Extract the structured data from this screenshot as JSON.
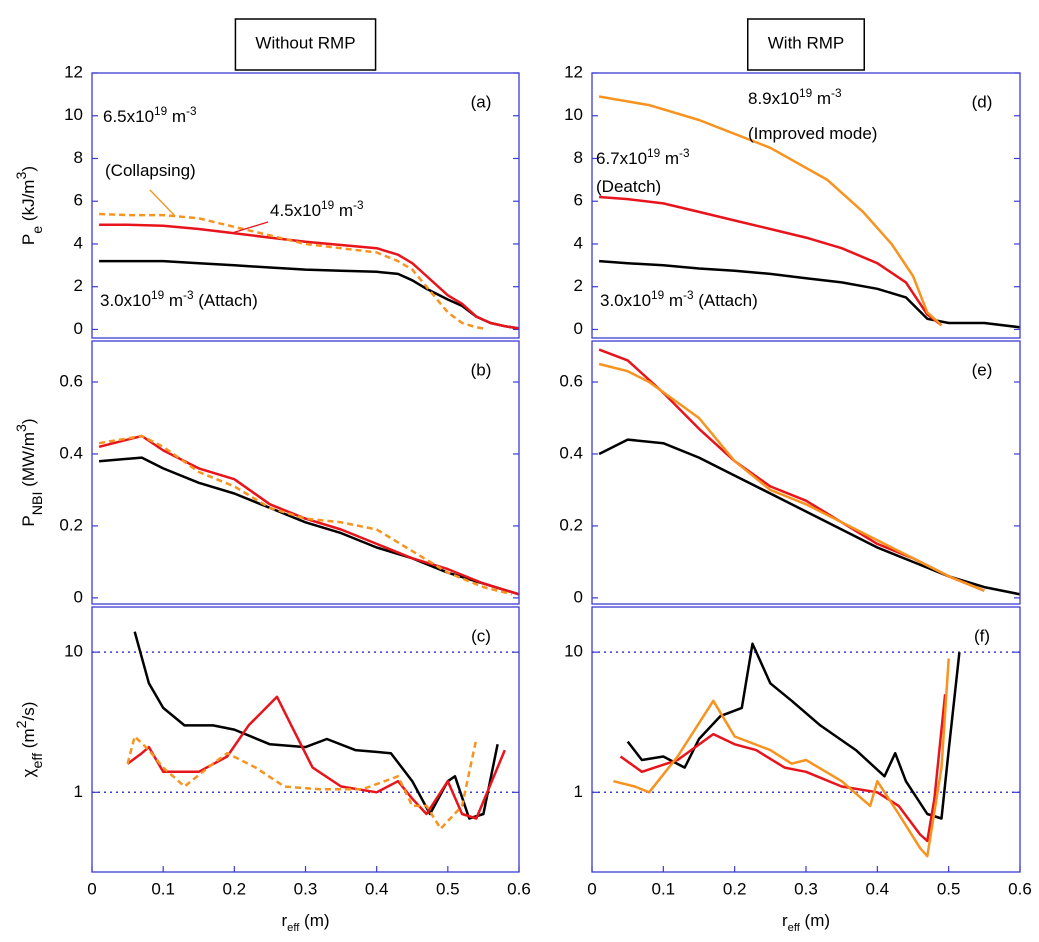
{
  "chart_data": [
    {
      "type": "line",
      "title": "Without RMP",
      "label": "(a)",
      "ylabel": [
        {
          "text": "P"
        },
        {
          "text": "e",
          "sub": true
        },
        {
          "text": " (kJ/m"
        },
        {
          "text": "3",
          "sup": true
        },
        {
          "text": ")"
        }
      ],
      "xlim": [
        0,
        0.6
      ],
      "ylim": [
        -0.4,
        12
      ],
      "yticks": [
        0,
        2,
        4,
        6,
        8,
        10,
        12
      ],
      "series": [
        {
          "color": "#000000",
          "x": [
            0.01,
            0.05,
            0.1,
            0.15,
            0.2,
            0.25,
            0.3,
            0.35,
            0.4,
            0.43,
            0.45,
            0.47,
            0.5,
            0.52,
            0.54,
            0.56,
            0.58,
            0.6
          ],
          "values": [
            3.2,
            3.2,
            3.2,
            3.1,
            3.0,
            2.9,
            2.8,
            2.75,
            2.7,
            2.6,
            2.3,
            1.9,
            1.4,
            1.1,
            0.6,
            0.3,
            0.15,
            0.05
          ]
        },
        {
          "color": "#e8141c",
          "x": [
            0.01,
            0.05,
            0.1,
            0.15,
            0.2,
            0.25,
            0.3,
            0.35,
            0.4,
            0.43,
            0.45,
            0.47,
            0.5,
            0.52,
            0.54,
            0.56,
            0.58,
            0.6
          ],
          "values": [
            4.9,
            4.9,
            4.85,
            4.7,
            4.5,
            4.3,
            4.1,
            3.95,
            3.8,
            3.5,
            3.1,
            2.5,
            1.6,
            1.2,
            0.6,
            0.3,
            0.15,
            0.05
          ]
        },
        {
          "color": "#f7931e",
          "dash": true,
          "x": [
            0.01,
            0.05,
            0.1,
            0.15,
            0.2,
            0.25,
            0.3,
            0.35,
            0.4,
            0.43,
            0.45,
            0.47,
            0.5,
            0.52,
            0.54,
            0.55
          ],
          "values": [
            5.4,
            5.35,
            5.35,
            5.2,
            4.8,
            4.4,
            4.0,
            3.8,
            3.6,
            3.2,
            2.8,
            2.0,
            0.8,
            0.3,
            0.1,
            0.05
          ]
        }
      ],
      "annotations": [
        {
          "color": "#f7931e",
          "segments": [
            {
              "text": "6.5x10"
            },
            {
              "text": "19",
              "sup": true
            },
            {
              "text": " m"
            },
            {
              "text": "-3",
              "sup": true
            }
          ]
        },
        {
          "color": "#f7931e",
          "segments": [
            {
              "text": "(Collapsing)"
            }
          ]
        },
        {
          "color": "#e8141c",
          "segments": [
            {
              "text": "4.5x10"
            },
            {
              "text": "19",
              "sup": true
            },
            {
              "text": " m"
            },
            {
              "text": "-3",
              "sup": true
            }
          ]
        },
        {
          "color": "#000000",
          "segments": [
            {
              "text": "3.0x10"
            },
            {
              "text": "19",
              "sup": true
            },
            {
              "text": " m"
            },
            {
              "text": "-3",
              "sup": true
            },
            {
              "text": " (Attach)"
            }
          ]
        }
      ]
    },
    {
      "type": "line",
      "label": "(b)",
      "ylabel": [
        {
          "text": "P"
        },
        {
          "text": "NBI",
          "sub": true
        },
        {
          "text": " (MW/m"
        },
        {
          "text": "3",
          "sup": true
        },
        {
          "text": ")"
        }
      ],
      "xlim": [
        0,
        0.6
      ],
      "ylim": [
        -0.017,
        0.714
      ],
      "yticks": [
        0,
        0.2,
        0.4,
        0.6
      ],
      "series": [
        {
          "color": "#000000",
          "x": [
            0.01,
            0.07,
            0.1,
            0.15,
            0.2,
            0.25,
            0.3,
            0.35,
            0.4,
            0.45,
            0.5,
            0.55,
            0.6
          ],
          "values": [
            0.38,
            0.39,
            0.36,
            0.32,
            0.29,
            0.25,
            0.21,
            0.18,
            0.14,
            0.11,
            0.07,
            0.04,
            0.01
          ]
        },
        {
          "color": "#e8141c",
          "x": [
            0.01,
            0.07,
            0.1,
            0.15,
            0.2,
            0.25,
            0.3,
            0.35,
            0.4,
            0.45,
            0.5,
            0.55,
            0.6
          ],
          "values": [
            0.42,
            0.45,
            0.41,
            0.36,
            0.33,
            0.26,
            0.22,
            0.19,
            0.15,
            0.11,
            0.08,
            0.04,
            0.01
          ]
        },
        {
          "color": "#f7931e",
          "dash": true,
          "x": [
            0.01,
            0.07,
            0.1,
            0.15,
            0.2,
            0.25,
            0.3,
            0.35,
            0.4,
            0.45,
            0.5,
            0.55,
            0.59
          ],
          "values": [
            0.43,
            0.45,
            0.42,
            0.35,
            0.31,
            0.25,
            0.22,
            0.21,
            0.19,
            0.13,
            0.07,
            0.03,
            0.01
          ]
        }
      ]
    },
    {
      "type": "line",
      "label": "(c)",
      "log": true,
      "grid": true,
      "ylabel": [
        {
          "text": "χ"
        },
        {
          "text": "eff",
          "sub": true
        },
        {
          "text": " (m"
        },
        {
          "text": "2",
          "sup": true
        },
        {
          "text": "/s)"
        }
      ],
      "xlabel": [
        {
          "text": "r"
        },
        {
          "text": "eff",
          "sub": true
        },
        {
          "text": " (m)"
        }
      ],
      "xlim": [
        0,
        0.6
      ],
      "xticks": [
        0,
        0.1,
        0.2,
        0.3,
        0.4,
        0.5,
        0.6
      ],
      "ylim": [
        0.27,
        21
      ],
      "yticks": [
        1,
        10
      ],
      "series": [
        {
          "color": "#000000",
          "x": [
            0.06,
            0.08,
            0.1,
            0.13,
            0.17,
            0.2,
            0.25,
            0.3,
            0.33,
            0.37,
            0.42,
            0.45,
            0.475,
            0.5,
            0.51,
            0.53,
            0.55,
            0.57
          ],
          "values": [
            14,
            6,
            4,
            3,
            3,
            2.8,
            2.2,
            2.1,
            2.4,
            2.0,
            1.9,
            1.2,
            0.7,
            1.2,
            1.3,
            0.65,
            0.7,
            2.2
          ]
        },
        {
          "color": "#e8141c",
          "x": [
            0.05,
            0.07,
            0.08,
            0.1,
            0.15,
            0.19,
            0.22,
            0.26,
            0.28,
            0.31,
            0.35,
            0.4,
            0.43,
            0.45,
            0.47,
            0.5,
            0.52,
            0.54,
            0.58
          ],
          "values": [
            1.6,
            1.9,
            2.1,
            1.4,
            1.4,
            1.8,
            3.0,
            4.8,
            3.0,
            1.5,
            1.1,
            1.0,
            1.2,
            0.9,
            0.7,
            1.2,
            0.7,
            0.65,
            2.0
          ]
        },
        {
          "color": "#f7931e",
          "dash": true,
          "x": [
            0.05,
            0.06,
            0.08,
            0.1,
            0.13,
            0.17,
            0.19,
            0.23,
            0.27,
            0.32,
            0.38,
            0.43,
            0.45,
            0.47,
            0.49,
            0.52,
            0.54
          ],
          "values": [
            1.6,
            2.5,
            2.0,
            1.5,
            1.1,
            1.6,
            1.9,
            1.5,
            1.1,
            1.05,
            1.05,
            1.3,
            0.8,
            0.8,
            0.55,
            0.8,
            2.4
          ]
        }
      ]
    },
    {
      "type": "line",
      "title": "With RMP",
      "label": "(d)",
      "xlim": [
        0,
        0.6
      ],
      "ylim": [
        -0.4,
        12
      ],
      "yticks": [
        0,
        2,
        4,
        6,
        8,
        10,
        12
      ],
      "series": [
        {
          "color": "#000000",
          "x": [
            0.01,
            0.05,
            0.1,
            0.15,
            0.2,
            0.25,
            0.3,
            0.35,
            0.4,
            0.44,
            0.47,
            0.5,
            0.55,
            0.6
          ],
          "values": [
            3.2,
            3.1,
            3.0,
            2.85,
            2.75,
            2.6,
            2.4,
            2.2,
            1.9,
            1.5,
            0.5,
            0.3,
            0.3,
            0.1
          ]
        },
        {
          "color": "#e8141c",
          "x": [
            0.01,
            0.05,
            0.1,
            0.15,
            0.2,
            0.25,
            0.3,
            0.35,
            0.4,
            0.44,
            0.47,
            0.49
          ],
          "values": [
            6.2,
            6.1,
            5.9,
            5.5,
            5.1,
            4.7,
            4.3,
            3.8,
            3.1,
            2.2,
            0.7,
            0.2
          ]
        },
        {
          "color": "#f7931e",
          "x": [
            0.01,
            0.08,
            0.15,
            0.25,
            0.33,
            0.38,
            0.42,
            0.45,
            0.47,
            0.49
          ],
          "values": [
            10.9,
            10.5,
            9.8,
            8.5,
            7.0,
            5.5,
            4.0,
            2.5,
            0.8,
            0.2
          ]
        }
      ],
      "annotations": [
        {
          "color": "#f7931e",
          "segments": [
            {
              "text": "8.9x10"
            },
            {
              "text": "19",
              "sup": true
            },
            {
              "text": " m"
            },
            {
              "text": "-3",
              "sup": true
            }
          ]
        },
        {
          "color": "#f7931e",
          "segments": [
            {
              "text": "(Improved mode)"
            }
          ]
        },
        {
          "color": "#e8141c",
          "segments": [
            {
              "text": "6.7x10"
            },
            {
              "text": "19",
              "sup": true
            },
            {
              "text": " m"
            },
            {
              "text": "-3",
              "sup": true
            }
          ]
        },
        {
          "color": "#e8141c",
          "segments": [
            {
              "text": "(Deatch)"
            }
          ]
        },
        {
          "color": "#000000",
          "segments": [
            {
              "text": "3.0x10"
            },
            {
              "text": "19",
              "sup": true
            },
            {
              "text": " m"
            },
            {
              "text": "-3",
              "sup": true
            },
            {
              "text": " (Attach)"
            }
          ]
        }
      ]
    },
    {
      "type": "line",
      "label": "(e)",
      "xlim": [
        0,
        0.6
      ],
      "ylim": [
        -0.017,
        0.714
      ],
      "yticks": [
        0,
        0.2,
        0.4,
        0.6
      ],
      "series": [
        {
          "color": "#000000",
          "x": [
            0.01,
            0.05,
            0.1,
            0.15,
            0.2,
            0.25,
            0.3,
            0.35,
            0.4,
            0.45,
            0.5,
            0.55,
            0.6
          ],
          "values": [
            0.4,
            0.44,
            0.43,
            0.39,
            0.34,
            0.29,
            0.24,
            0.19,
            0.14,
            0.1,
            0.06,
            0.03,
            0.01
          ]
        },
        {
          "color": "#e8141c",
          "x": [
            0.01,
            0.05,
            0.1,
            0.15,
            0.2,
            0.25,
            0.3,
            0.35,
            0.4,
            0.45,
            0.5,
            0.55
          ],
          "values": [
            0.69,
            0.66,
            0.57,
            0.47,
            0.38,
            0.31,
            0.27,
            0.21,
            0.15,
            0.11,
            0.06,
            0.02
          ]
        },
        {
          "color": "#f7931e",
          "x": [
            0.01,
            0.05,
            0.08,
            0.15,
            0.2,
            0.25,
            0.3,
            0.35,
            0.4,
            0.45,
            0.5,
            0.55
          ],
          "values": [
            0.65,
            0.63,
            0.6,
            0.5,
            0.38,
            0.3,
            0.26,
            0.21,
            0.16,
            0.11,
            0.06,
            0.02
          ]
        }
      ]
    },
    {
      "type": "line",
      "label": "(f)",
      "log": true,
      "grid": true,
      "xlabel": [
        {
          "text": "r"
        },
        {
          "text": "eff",
          "sub": true
        },
        {
          "text": " (m)"
        }
      ],
      "xlim": [
        0,
        0.6
      ],
      "xticks": [
        0,
        0.1,
        0.2,
        0.3,
        0.4,
        0.5,
        0.6
      ],
      "ylim": [
        0.27,
        21
      ],
      "yticks": [
        1,
        10
      ],
      "series": [
        {
          "color": "#000000",
          "x": [
            0.05,
            0.07,
            0.1,
            0.13,
            0.15,
            0.18,
            0.21,
            0.225,
            0.25,
            0.28,
            0.32,
            0.37,
            0.41,
            0.425,
            0.44,
            0.47,
            0.49,
            0.5,
            0.515
          ],
          "values": [
            2.3,
            1.7,
            1.8,
            1.5,
            2.4,
            3.5,
            4.0,
            11.5,
            6.0,
            4.5,
            3.0,
            2.0,
            1.3,
            1.9,
            1.2,
            0.7,
            0.65,
            2.0,
            10
          ]
        },
        {
          "color": "#e8141c",
          "x": [
            0.04,
            0.07,
            0.12,
            0.17,
            0.2,
            0.23,
            0.27,
            0.3,
            0.35,
            0.4,
            0.43,
            0.46,
            0.47,
            0.48,
            0.495
          ],
          "values": [
            1.8,
            1.4,
            1.7,
            2.6,
            2.2,
            2.0,
            1.5,
            1.4,
            1.1,
            1.0,
            0.8,
            0.5,
            0.45,
            0.9,
            5.0
          ]
        },
        {
          "color": "#f7931e",
          "x": [
            0.03,
            0.06,
            0.08,
            0.12,
            0.17,
            0.2,
            0.25,
            0.28,
            0.3,
            0.35,
            0.39,
            0.4,
            0.43,
            0.46,
            0.47,
            0.49,
            0.5
          ],
          "values": [
            1.2,
            1.1,
            1.0,
            1.8,
            4.5,
            2.5,
            2.0,
            1.6,
            1.7,
            1.2,
            0.8,
            1.2,
            0.7,
            0.4,
            0.35,
            1.5,
            9
          ]
        }
      ]
    }
  ]
}
